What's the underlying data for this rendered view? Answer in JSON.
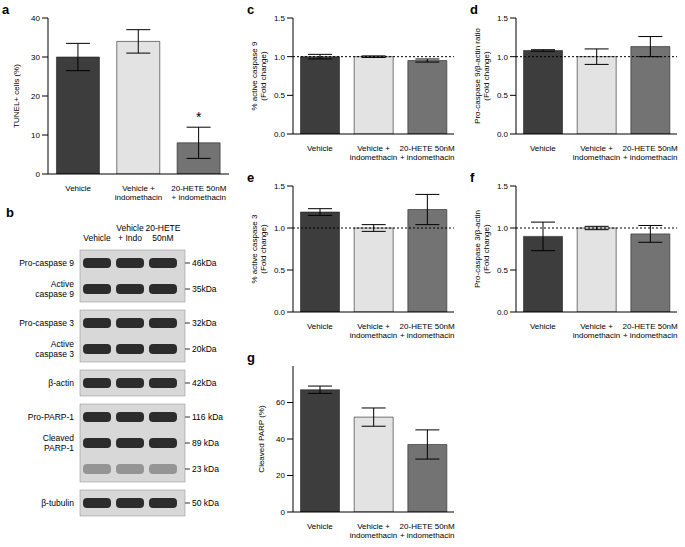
{
  "chart_data": [
    {
      "panel": "a",
      "type": "bar",
      "y_label": "TUNEL+ cells (%)",
      "categories": [
        "Vehicle",
        "Vehicle +\nindomethacin",
        "20-HETE 50nM\n+ indomethacin"
      ],
      "values": [
        30,
        34,
        8
      ],
      "errors": [
        3.5,
        3,
        4
      ],
      "colors": [
        "#3d3d3d",
        "#e3e3e3",
        "#737373"
      ],
      "ylim": [
        0,
        40
      ],
      "yticks": [
        0,
        10,
        20,
        30,
        40
      ],
      "annotations": [
        {
          "category": "20-HETE 50nM\n+ indomethacin",
          "text": "*"
        }
      ]
    },
    {
      "panel": "c",
      "type": "bar",
      "y_label": "% active caspase 9\n(Fold change)",
      "categories": [
        "Vehicle",
        "Vehicle +\nindomethacin",
        "20-HETE 50nM\n+ indomethacin"
      ],
      "values": [
        1.0,
        1.0,
        0.95
      ],
      "errors": [
        0.03,
        0.01,
        0.02
      ],
      "colors": [
        "#3d3d3d",
        "#e3e3e3",
        "#737373"
      ],
      "ylim": [
        0,
        1.5
      ],
      "yticks": [
        {
          "value": 0,
          "label": "0.0"
        },
        {
          "value": 0.5,
          "label": "0.5"
        },
        {
          "value": 1,
          "label": "1.0"
        },
        {
          "value": 1.5,
          "label": "1.5"
        }
      ],
      "reference_line": 1
    },
    {
      "panel": "d",
      "type": "bar",
      "y_label": "Pro-caspase 9/β-actin ratio\n(Fold change)",
      "categories": [
        "Vehicle",
        "Vehicle +\nindomethacin",
        "20-HETE 50nM\n+ indomethacin"
      ],
      "values": [
        1.08,
        1.0,
        1.13
      ],
      "errors": [
        0.01,
        0.1,
        0.13
      ],
      "colors": [
        "#3d3d3d",
        "#e3e3e3",
        "#737373"
      ],
      "ylim": [
        0,
        1.5
      ],
      "yticks": [
        {
          "value": 0,
          "label": "0.0"
        },
        {
          "value": 0.5,
          "label": "0.5"
        },
        {
          "value": 1,
          "label": "1.0"
        },
        {
          "value": 1.5,
          "label": "1.5"
        }
      ],
      "reference_line": 1
    },
    {
      "panel": "e",
      "type": "bar",
      "y_label": "% active caspase 3\n(Fold change)",
      "categories": [
        "Vehicle",
        "Vehicle +\nindomethacin",
        "20-HETE 50nM\n+ indomethacin"
      ],
      "values": [
        1.19,
        1.0,
        1.22
      ],
      "errors": [
        0.04,
        0.04,
        0.18
      ],
      "colors": [
        "#3d3d3d",
        "#e3e3e3",
        "#737373"
      ],
      "ylim": [
        0,
        1.5
      ],
      "yticks": [
        {
          "value": 0,
          "label": "0.0"
        },
        {
          "value": 0.5,
          "label": "0.5"
        },
        {
          "value": 1,
          "label": "1.0"
        },
        {
          "value": 1.5,
          "label": "1.5"
        }
      ],
      "reference_line": 1
    },
    {
      "panel": "f",
      "type": "bar",
      "y_label": "Pro-caspase 3/β-actin\n(Fold change)",
      "categories": [
        "Vehicle",
        "Vehicle +\nindomethacin",
        "20-HETE 50nM\n+ indomethacin"
      ],
      "values": [
        0.9,
        1.0,
        0.93
      ],
      "errors": [
        0.17,
        0.02,
        0.1
      ],
      "colors": [
        "#3d3d3d",
        "#e3e3e3",
        "#737373"
      ],
      "ylim": [
        0,
        1.5
      ],
      "yticks": [
        {
          "value": 0,
          "label": "0.0"
        },
        {
          "value": 0.5,
          "label": "0.5"
        },
        {
          "value": 1,
          "label": "1.0"
        },
        {
          "value": 1.5,
          "label": "1.5"
        }
      ],
      "reference_line": 1
    },
    {
      "panel": "g",
      "type": "bar",
      "y_label": "Cleaved PARP (%)",
      "categories": [
        "Vehicle",
        "Vehicle +\nindomethacin",
        "20-HETE 50nM\n+ indomethacin"
      ],
      "values": [
        67,
        52,
        37
      ],
      "errors": [
        2,
        5,
        8
      ],
      "colors": [
        "#3d3d3d",
        "#e3e3e3",
        "#737373"
      ],
      "ylim": [
        0,
        80
      ],
      "yticks": [
        0,
        20,
        40,
        60
      ]
    }
  ],
  "blot": {
    "panel": "b",
    "lanes": [
      "Vehicle",
      "Vehicle\n+ Indo",
      "20-HETE\n50nM"
    ],
    "blocks": [
      {
        "rows": [
          {
            "label": "Pro-caspase 9",
            "mw": "46kDa"
          },
          {
            "label": "Active\ncaspase 9",
            "mw": "35kDa"
          }
        ]
      },
      {
        "rows": [
          {
            "label": "Pro-caspase 3",
            "mw": "32kDa"
          },
          {
            "label": "Active\ncaspase 3",
            "mw": "20kDa"
          }
        ]
      },
      {
        "rows": [
          {
            "label": "β-actin",
            "mw": "42kDa"
          }
        ]
      },
      {
        "rows": [
          {
            "label": "Pro-PARP-1",
            "mw": "116 kDa"
          },
          {
            "label": "Cleaved\nPARP-1",
            "mw": "89 kDa"
          },
          {
            "mw": "23 kDa"
          }
        ]
      },
      {
        "rows": [
          {
            "label": "β-tubulin",
            "mw": "50 kDa"
          }
        ]
      }
    ]
  }
}
